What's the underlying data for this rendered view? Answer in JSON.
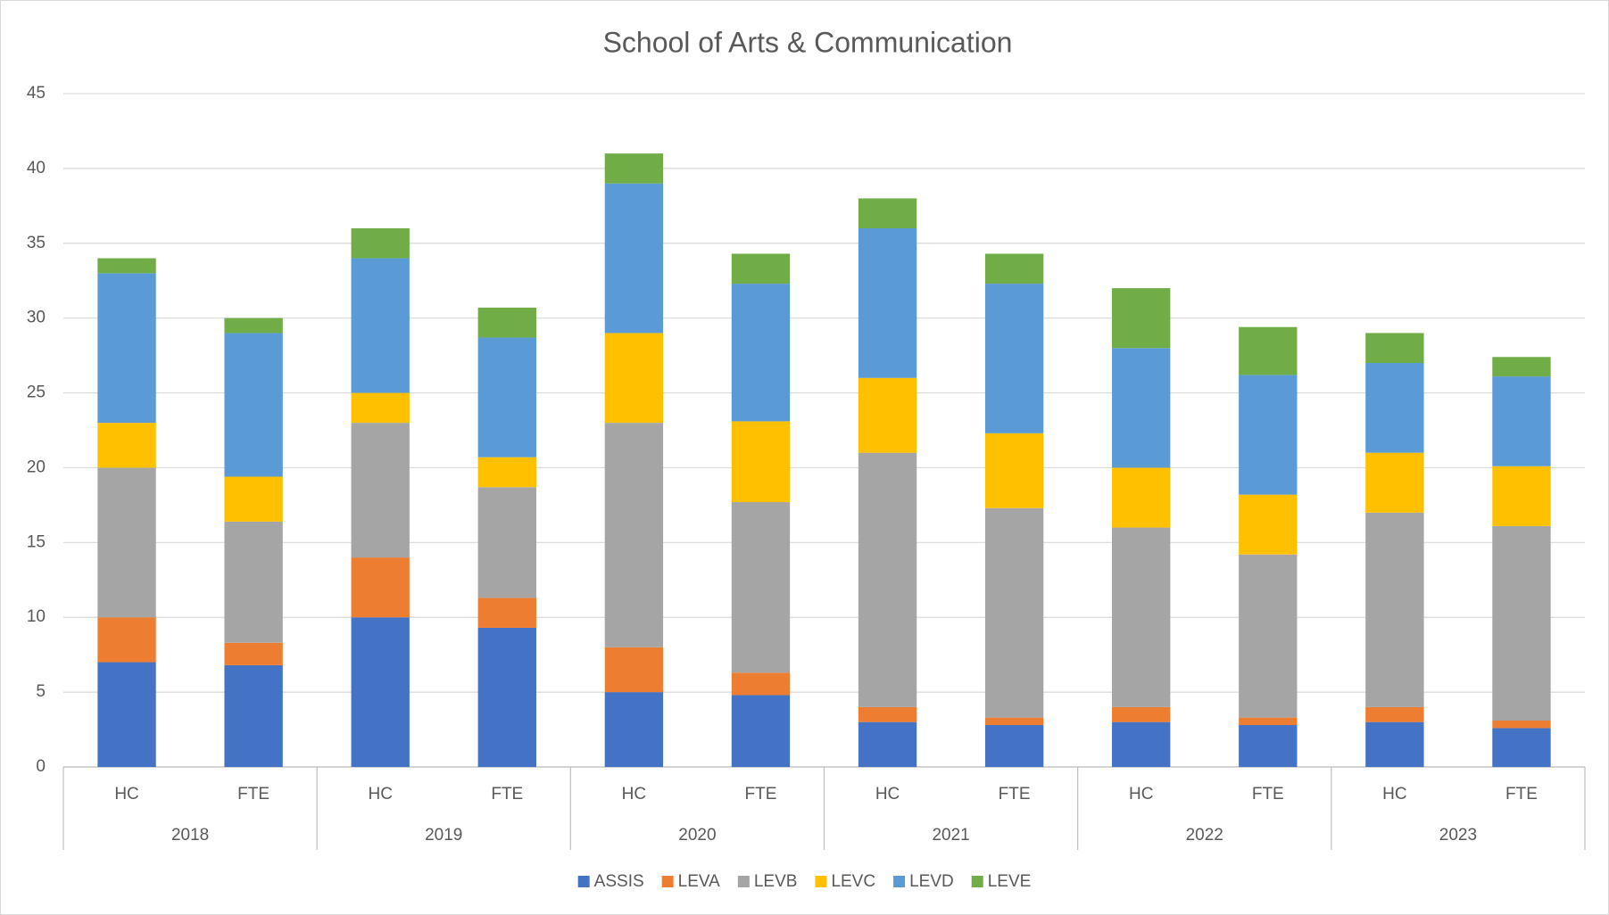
{
  "chart_data": {
    "type": "stacked_bar",
    "title": "School of Arts & Communication",
    "categories": [
      "HC",
      "FTE",
      "HC",
      "FTE",
      "HC",
      "FTE",
      "HC",
      "FTE",
      "HC",
      "FTE",
      "HC",
      "FTE"
    ],
    "groups": [
      "2018",
      "2019",
      "2020",
      "2021",
      "2022",
      "2023"
    ],
    "ylim": [
      0,
      45
    ],
    "yticks": [
      0,
      5,
      10,
      15,
      20,
      25,
      30,
      35,
      40,
      45
    ],
    "grid": true,
    "legend": "bottom",
    "series": [
      {
        "name": "ASSIS",
        "color": "#4472c4",
        "values": [
          7,
          6.8,
          10,
          9.3,
          5,
          4.8,
          3,
          2.8,
          3,
          2.8,
          3,
          2.6
        ]
      },
      {
        "name": "LEVA",
        "color": "#ed7d31",
        "values": [
          3,
          1.5,
          4,
          2,
          3,
          1.5,
          1,
          0.5,
          1,
          0.5,
          1,
          0.5
        ]
      },
      {
        "name": "LEVB",
        "color": "#a5a5a5",
        "values": [
          10,
          8.1,
          9,
          7.4,
          15,
          11.4,
          17,
          14,
          12,
          10.9,
          13,
          13
        ]
      },
      {
        "name": "LEVC",
        "color": "#ffc000",
        "values": [
          3,
          3,
          2,
          2,
          6,
          5.4,
          5,
          5,
          4,
          4,
          4,
          4
        ]
      },
      {
        "name": "LEVD",
        "color": "#5b9bd5",
        "values": [
          10,
          9.6,
          9,
          8,
          10,
          9.2,
          10,
          10,
          8,
          8,
          6,
          6
        ]
      },
      {
        "name": "LEVE",
        "color": "#70ad47",
        "values": [
          1,
          1,
          2,
          2,
          2,
          2,
          2,
          2,
          4,
          3.2,
          2,
          1.3
        ]
      }
    ]
  }
}
